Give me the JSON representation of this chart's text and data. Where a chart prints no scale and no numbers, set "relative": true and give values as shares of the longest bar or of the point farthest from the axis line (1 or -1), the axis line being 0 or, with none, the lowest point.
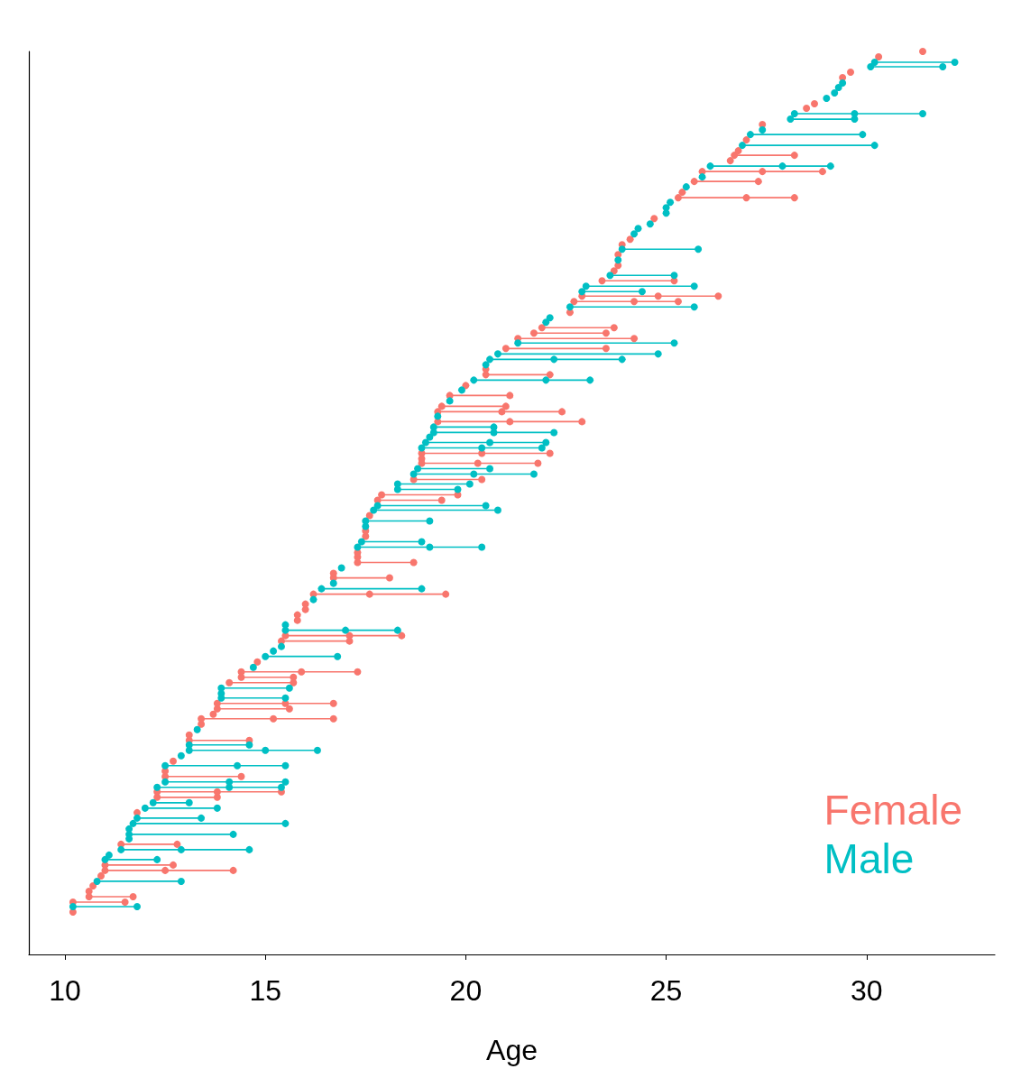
{
  "chart_data": {
    "type": "line",
    "xlabel": "Age",
    "xlim": [
      9.1,
      33.2
    ],
    "xticks": [
      10,
      15,
      20,
      25,
      30
    ],
    "relative": true,
    "marker": "circle",
    "line_style": "solid",
    "legend": "bottom right",
    "series": [
      {
        "name": "Female",
        "color": "#f8766d",
        "x": [
          10.2,
          null,
          10.2,
          11.5,
          null,
          10.6,
          11.7,
          null,
          10.6,
          null,
          10.7,
          null,
          10.9,
          null,
          11.0,
          12.5,
          14.2,
          null,
          11.0,
          12.7,
          null,
          11.4,
          12.8,
          null,
          11.8,
          null,
          12.3,
          13.8,
          null,
          12.3,
          13.8,
          15.4,
          null,
          12.5,
          14.4,
          null,
          12.5,
          null,
          12.7,
          null,
          13.1,
          14.6,
          null,
          13.1,
          null,
          13.4,
          null,
          13.4,
          15.2,
          16.7,
          null,
          13.7,
          null,
          13.8,
          15.6,
          null,
          13.8,
          15.5,
          16.7,
          null,
          14.1,
          15.7,
          null,
          14.4,
          15.7,
          null,
          14.4,
          15.9,
          17.3,
          null,
          14.8,
          null,
          15.4,
          17.1,
          null,
          15.5,
          17.1,
          18.4,
          null,
          15.8,
          null,
          15.8,
          null,
          16.0,
          null,
          16.0,
          null,
          16.2,
          17.6,
          19.5,
          null,
          16.7,
          18.1,
          null,
          16.7,
          null,
          17.3,
          18.7,
          null,
          17.3,
          null,
          17.3,
          null,
          17.5,
          null,
          17.5,
          null,
          17.6,
          null,
          17.8,
          19.4,
          null,
          17.9,
          19.8,
          null,
          18.7,
          20.4,
          null,
          18.9,
          20.3,
          21.8,
          null,
          18.9,
          null,
          18.9,
          20.4,
          22.1,
          null,
          19.3,
          21.1,
          22.9,
          null,
          19.3,
          20.9,
          22.4,
          null,
          19.4,
          21.0,
          null,
          19.6,
          21.1,
          null,
          20.0,
          null,
          20.5,
          22.1,
          null,
          20.5,
          null,
          21.0,
          23.5,
          null,
          21.3,
          24.2,
          null,
          21.7,
          23.5,
          null,
          21.9,
          23.7,
          null,
          22.6,
          null,
          22.7,
          24.2,
          25.3,
          null,
          22.9,
          24.8,
          26.3,
          null,
          23.4,
          25.2,
          null,
          23.7,
          null,
          23.8,
          null,
          23.8,
          null,
          23.9,
          null,
          24.1,
          null,
          24.7,
          null,
          25.3,
          27.0,
          28.2,
          null,
          25.4,
          null,
          25.7,
          27.3,
          null,
          25.9,
          27.4,
          28.9,
          null,
          26.6,
          null,
          26.7,
          28.2,
          null,
          26.8,
          null,
          27.0,
          null,
          27.4,
          null,
          28.5,
          null,
          28.7,
          null,
          29.4,
          null,
          29.6,
          null,
          30.3,
          null,
          31.4
        ],
        "values": [
          0.047,
          null,
          0.058,
          0.058,
          null,
          0.064,
          0.064,
          null,
          0.07,
          null,
          0.076,
          null,
          0.087,
          null,
          0.093,
          0.093,
          0.093,
          null,
          0.099,
          0.099,
          null,
          0.122,
          0.122,
          null,
          0.157,
          null,
          0.174,
          0.174,
          null,
          0.18,
          0.18,
          0.18,
          null,
          0.197,
          0.197,
          null,
          0.203,
          null,
          0.214,
          null,
          0.237,
          0.237,
          null,
          0.243,
          null,
          0.255,
          null,
          0.261,
          0.261,
          0.261,
          null,
          0.266,
          null,
          0.272,
          0.272,
          null,
          0.278,
          0.278,
          0.278,
          null,
          0.301,
          0.301,
          null,
          0.307,
          0.307,
          null,
          0.313,
          0.313,
          0.313,
          null,
          0.324,
          null,
          0.347,
          0.347,
          null,
          0.353,
          0.353,
          0.353,
          null,
          0.37,
          null,
          0.376,
          null,
          0.382,
          null,
          0.388,
          null,
          0.399,
          0.399,
          0.399,
          null,
          0.417,
          0.417,
          null,
          0.422,
          null,
          0.434,
          0.434,
          null,
          0.44,
          null,
          0.445,
          null,
          0.463,
          null,
          0.469,
          null,
          0.486,
          null,
          0.503,
          0.503,
          null,
          0.509,
          0.509,
          null,
          0.526,
          0.526,
          null,
          0.544,
          0.544,
          0.544,
          null,
          0.549,
          null,
          0.555,
          0.555,
          0.555,
          null,
          0.59,
          0.59,
          0.59,
          null,
          0.601,
          0.601,
          0.601,
          null,
          0.607,
          0.607,
          null,
          0.619,
          0.619,
          null,
          0.63,
          null,
          0.642,
          0.642,
          null,
          0.648,
          null,
          0.671,
          0.671,
          null,
          0.682,
          0.682,
          null,
          0.688,
          0.688,
          null,
          0.694,
          0.694,
          null,
          0.711,
          null,
          0.723,
          0.723,
          0.723,
          null,
          0.729,
          0.729,
          0.729,
          null,
          0.746,
          0.746,
          null,
          0.757,
          null,
          0.763,
          null,
          0.775,
          null,
          0.786,
          null,
          0.792,
          null,
          0.815,
          null,
          0.838,
          0.838,
          0.838,
          null,
          0.844,
          null,
          0.856,
          0.856,
          null,
          0.867,
          0.867,
          0.867,
          null,
          0.879,
          null,
          0.885,
          0.885,
          null,
          0.89,
          null,
          0.902,
          null,
          0.919,
          null,
          0.937,
          null,
          0.942,
          null,
          0.971,
          null,
          0.977,
          null,
          0.994,
          null,
          1.0
        ]
      },
      {
        "name": "Male",
        "color": "#00bfc4",
        "x": [
          10.2,
          11.8,
          null,
          10.8,
          12.9,
          null,
          11.0,
          12.3,
          null,
          11.1,
          null,
          11.4,
          12.9,
          14.6,
          null,
          11.6,
          null,
          11.6,
          14.2,
          null,
          11.6,
          null,
          11.7,
          15.5,
          null,
          11.8,
          13.4,
          null,
          12.0,
          13.8,
          null,
          12.2,
          13.1,
          null,
          12.3,
          14.1,
          15.4,
          null,
          12.5,
          14.1,
          15.5,
          null,
          12.5,
          14.3,
          15.5,
          null,
          12.9,
          null,
          13.1,
          15.0,
          16.3,
          null,
          13.1,
          14.6,
          null,
          13.3,
          null,
          13.9,
          15.5,
          null,
          13.9,
          null,
          13.9,
          15.6,
          null,
          14.7,
          null,
          15.0,
          16.8,
          null,
          15.2,
          null,
          15.4,
          null,
          15.5,
          17.0,
          18.3,
          null,
          15.5,
          null,
          16.2,
          null,
          16.4,
          18.9,
          null,
          16.7,
          null,
          16.9,
          null,
          17.3,
          19.1,
          20.4,
          null,
          17.4,
          18.9,
          null,
          17.5,
          null,
          17.5,
          19.1,
          null,
          17.7,
          20.8,
          null,
          17.8,
          20.5,
          null,
          18.3,
          19.8,
          null,
          18.3,
          20.1,
          null,
          18.7,
          20.2,
          21.7,
          null,
          18.8,
          20.6,
          null,
          18.9,
          20.4,
          21.9,
          null,
          19.0,
          20.6,
          22.0,
          null,
          19.1,
          null,
          19.2,
          20.7,
          22.2,
          null,
          19.2,
          20.7,
          null,
          19.3,
          null,
          19.6,
          null,
          19.9,
          null,
          20.2,
          22.0,
          23.1,
          null,
          20.5,
          null,
          20.6,
          22.2,
          23.9,
          null,
          20.8,
          24.8,
          null,
          21.3,
          25.2,
          null,
          22.0,
          null,
          22.1,
          null,
          22.6,
          25.7,
          null,
          22.9,
          24.4,
          null,
          23.0,
          25.7,
          null,
          23.6,
          25.2,
          null,
          23.8,
          null,
          23.9,
          25.8,
          null,
          24.2,
          null,
          24.3,
          null,
          24.6,
          null,
          25.0,
          null,
          25.0,
          null,
          25.1,
          null,
          25.5,
          null,
          25.9,
          null,
          26.1,
          27.9,
          29.1,
          null,
          26.9,
          30.2,
          null,
          27.1,
          29.9,
          null,
          27.4,
          null,
          28.1,
          29.7,
          null,
          28.2,
          29.7,
          31.4,
          null,
          29.0,
          null,
          29.2,
          null,
          29.3,
          null,
          29.4,
          null,
          30.1,
          31.9,
          null,
          30.2,
          32.2
        ],
        "values": [
          0.053,
          0.053,
          null,
          0.081,
          0.081,
          null,
          0.105,
          0.105,
          null,
          0.11,
          null,
          0.116,
          0.116,
          0.116,
          null,
          0.128,
          null,
          0.133,
          0.133,
          null,
          0.139,
          null,
          0.145,
          0.145,
          null,
          0.151,
          0.151,
          null,
          0.162,
          0.162,
          null,
          0.168,
          0.168,
          null,
          0.185,
          0.185,
          0.185,
          null,
          0.191,
          0.191,
          0.191,
          null,
          0.209,
          0.209,
          0.209,
          null,
          0.22,
          null,
          0.226,
          0.226,
          0.226,
          null,
          0.232,
          0.232,
          null,
          0.249,
          null,
          0.284,
          0.284,
          null,
          0.289,
          null,
          0.295,
          0.295,
          null,
          0.318,
          null,
          0.33,
          0.33,
          null,
          0.336,
          null,
          0.341,
          null,
          0.359,
          0.359,
          0.359,
          null,
          0.365,
          null,
          0.393,
          null,
          0.405,
          0.405,
          null,
          0.411,
          null,
          0.428,
          null,
          0.451,
          0.451,
          0.451,
          null,
          0.457,
          0.457,
          null,
          0.474,
          null,
          0.48,
          0.48,
          null,
          0.492,
          0.492,
          null,
          0.497,
          0.497,
          null,
          0.515,
          0.515,
          null,
          0.521,
          0.521,
          null,
          0.532,
          0.532,
          0.532,
          null,
          0.538,
          0.538,
          null,
          0.561,
          0.561,
          0.561,
          null,
          0.567,
          0.567,
          0.567,
          null,
          0.573,
          null,
          0.578,
          0.578,
          0.578,
          null,
          0.584,
          0.584,
          null,
          0.596,
          null,
          0.613,
          null,
          0.625,
          null,
          0.636,
          0.636,
          0.636,
          null,
          0.653,
          null,
          0.659,
          0.659,
          0.659,
          null,
          0.665,
          0.665,
          null,
          0.677,
          0.677,
          null,
          0.7,
          null,
          0.705,
          null,
          0.717,
          0.717,
          null,
          0.734,
          0.734,
          null,
          0.74,
          0.74,
          null,
          0.752,
          0.752,
          null,
          0.769,
          null,
          0.781,
          0.781,
          null,
          0.798,
          null,
          0.804,
          null,
          0.809,
          null,
          0.821,
          null,
          0.827,
          null,
          0.833,
          null,
          0.85,
          null,
          0.861,
          null,
          0.873,
          0.873,
          0.873,
          null,
          0.896,
          0.896,
          null,
          0.908,
          0.908,
          null,
          0.913,
          null,
          0.925,
          0.925,
          null,
          0.931,
          0.931,
          0.931,
          null,
          0.948,
          null,
          0.954,
          null,
          0.96,
          null,
          0.965,
          null,
          0.983,
          0.983,
          null,
          0.988,
          0.988
        ]
      }
    ]
  }
}
